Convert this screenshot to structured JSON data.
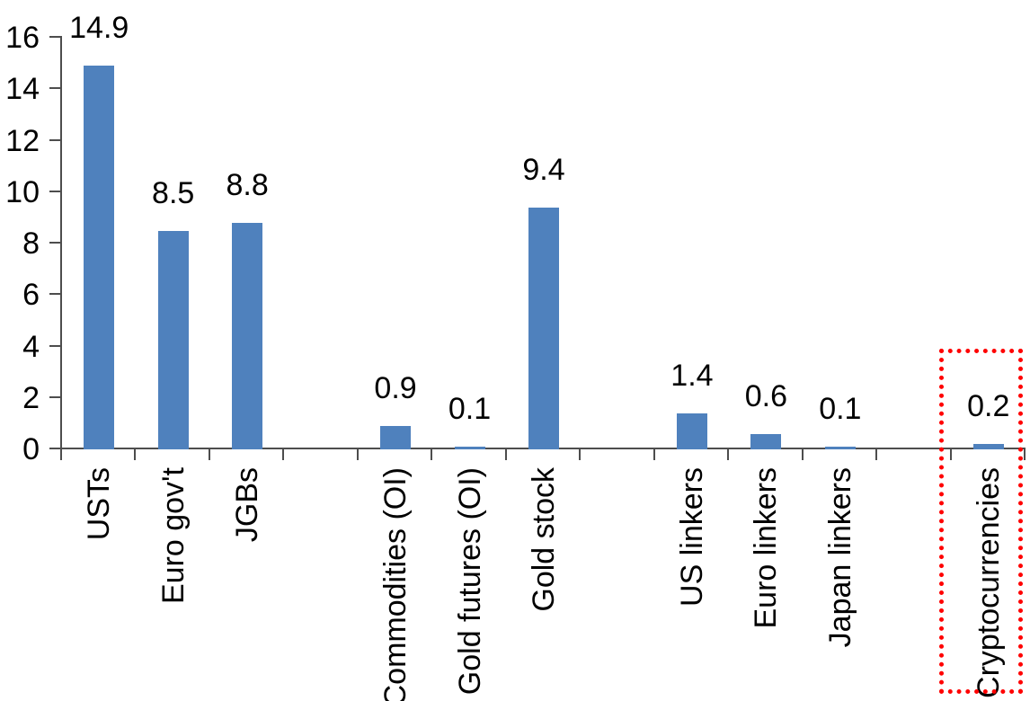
{
  "chart_data": {
    "type": "bar",
    "title": "",
    "xlabel": "",
    "ylabel": "",
    "categories": [
      "USTs",
      "Euro gov't",
      "JGBs",
      "",
      "Commodities (OI)",
      "Gold futures (OI)",
      "Gold stock",
      "",
      "US linkers",
      "Euro linkers",
      "Japan linkers",
      "",
      "Cryptocurrencies"
    ],
    "values": [
      14.9,
      8.5,
      8.8,
      null,
      0.9,
      0.1,
      9.4,
      null,
      1.4,
      0.6,
      0.1,
      null,
      0.2
    ],
    "data_labels": [
      "14.9",
      "8.5",
      "8.8",
      "",
      "0.9",
      "0.1",
      "9.4",
      "",
      "1.4",
      "0.6",
      "0.1",
      "",
      "0.2"
    ],
    "yticks": [
      0,
      2,
      4,
      6,
      8,
      10,
      12,
      14,
      16
    ],
    "ytick_labels": [
      "0",
      "2",
      "4",
      "6",
      "8",
      "10",
      "12",
      "14",
      "16"
    ],
    "ylim": [
      0,
      16
    ],
    "grid": false,
    "legend": false,
    "colors": {
      "bar": "#4F81BD",
      "axis": "#4D4D4D",
      "text": "#000000",
      "highlight_border": "#FF0000"
    },
    "highlight": {
      "category": "Cryptocurrencies",
      "border_style": "dotted",
      "border_color": "#FF0000"
    }
  }
}
